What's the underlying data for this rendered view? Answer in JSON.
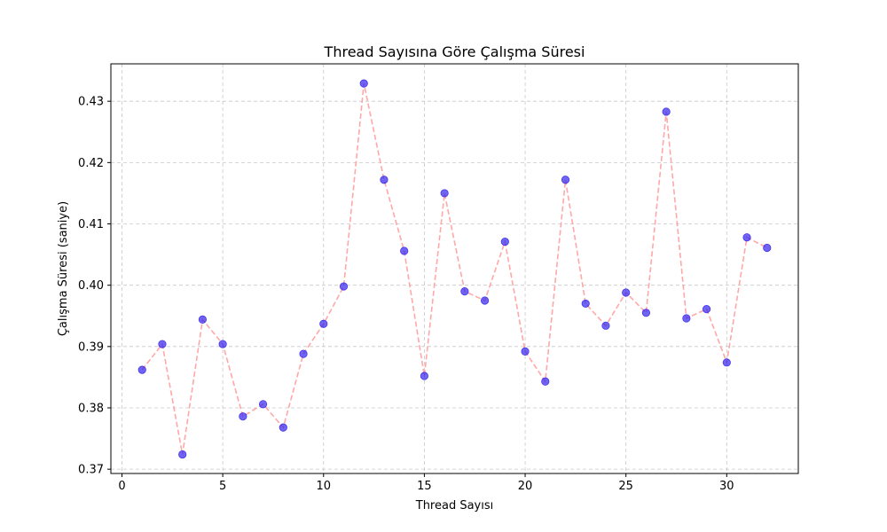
{
  "chart_data": {
    "type": "line",
    "title": "Thread Sayısına Göre Çalışma Süresi",
    "xlabel": "Thread Sayısı",
    "ylabel": "Çalışma Süresi (saniye)",
    "xlim": [
      -0.55,
      33.55
    ],
    "ylim": [
      0.3693,
      0.4361
    ],
    "xticks": [
      0,
      5,
      10,
      15,
      20,
      25,
      30
    ],
    "yticks": [
      0.37,
      0.38,
      0.39,
      0.4,
      0.41,
      0.42,
      0.43
    ],
    "ytick_labels": [
      "0.37",
      "0.38",
      "0.39",
      "0.40",
      "0.41",
      "0.42",
      "0.43"
    ],
    "grid": true,
    "series": [
      {
        "line_color": "#ff9999",
        "line_style": "dashed",
        "marker_color": "#3322ee",
        "x": [
          1,
          2,
          3,
          4,
          5,
          6,
          7,
          8,
          9,
          10,
          11,
          12,
          13,
          14,
          15,
          16,
          17,
          18,
          19,
          20,
          21,
          22,
          23,
          24,
          25,
          26,
          27,
          28,
          29,
          30,
          31,
          32
        ],
        "values": [
          0.3862,
          0.3904,
          0.3724,
          0.3944,
          0.3904,
          0.3786,
          0.3806,
          0.3768,
          0.3888,
          0.3937,
          0.3998,
          0.4329,
          0.4172,
          0.4056,
          0.3852,
          0.415,
          0.399,
          0.3975,
          0.4071,
          0.3892,
          0.3843,
          0.4172,
          0.397,
          0.3934,
          0.3988,
          0.3955,
          0.4283,
          0.3946,
          0.3961,
          0.3874,
          0.4078,
          0.4061
        ]
      }
    ]
  }
}
